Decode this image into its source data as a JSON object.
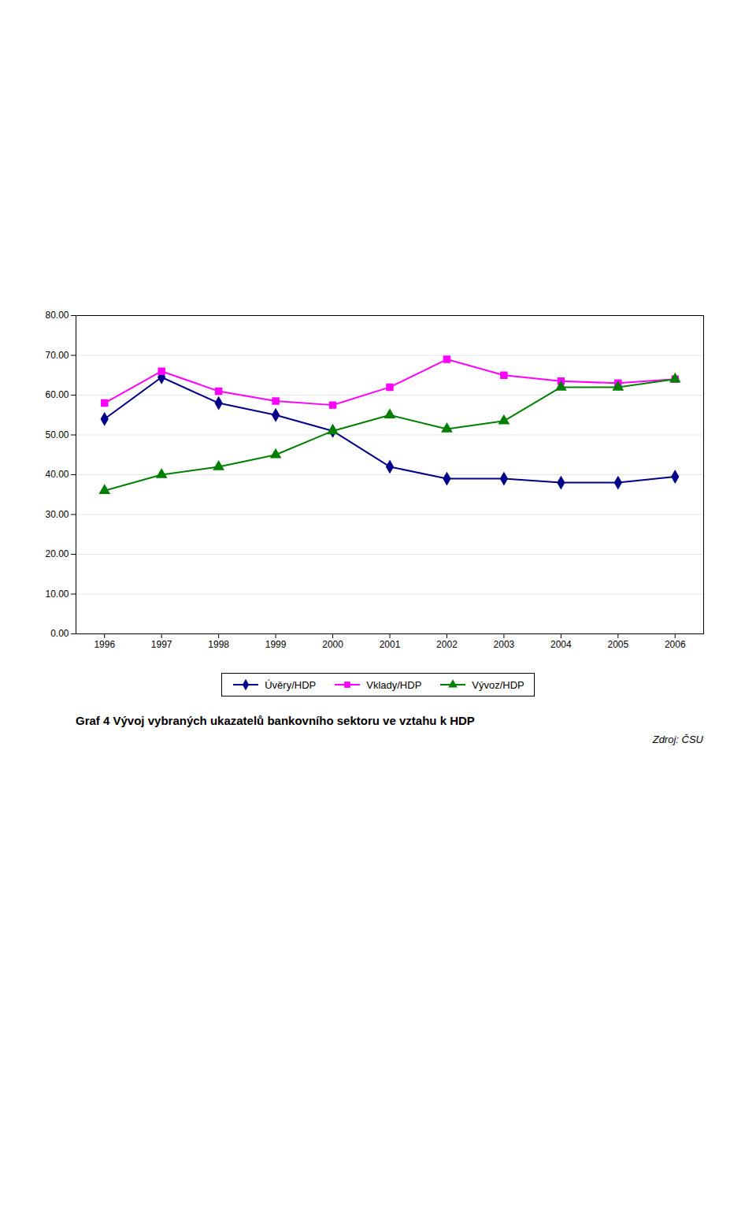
{
  "chart_data": {
    "type": "line",
    "title": "Graf 4  Vývoj vybraných ukazatelů bankovního sektoru ve vztahu k HDP",
    "caption": "Zdroj: ČSU",
    "x": [
      1996,
      1997,
      1998,
      1999,
      2000,
      2001,
      2002,
      2003,
      2004,
      2005,
      2006
    ],
    "series": [
      {
        "name": "Úvěry/HDP",
        "color": "#00008B",
        "marker": "diamond",
        "values": [
          54.0,
          64.5,
          58.0,
          55.0,
          51.0,
          42.0,
          39.0,
          39.0,
          38.0,
          38.0,
          39.5
        ]
      },
      {
        "name": "Vklady/HDP",
        "color": "#FF00FF",
        "marker": "square",
        "values": [
          58.0,
          66.0,
          61.0,
          58.5,
          57.5,
          62.0,
          69.0,
          65.0,
          63.5,
          63.0,
          64.0
        ]
      },
      {
        "name": "Vývoz/HDP",
        "color": "#008000",
        "marker": "triangle",
        "values": [
          36.0,
          40.0,
          42.0,
          45.0,
          51.0,
          55.0,
          51.5,
          53.5,
          62.0,
          62.0,
          64.0
        ]
      }
    ],
    "xlim": [
      1995.5,
      2006.5
    ],
    "xticks": [
      1996,
      1997,
      1998,
      1999,
      2000,
      2001,
      2002,
      2003,
      2004,
      2005,
      2006
    ],
    "ylim": [
      0,
      80
    ],
    "yticks": [
      {
        "value": 0,
        "label": "0.00"
      },
      {
        "value": 10,
        "label": "10.00"
      },
      {
        "value": 20,
        "label": "20.00"
      },
      {
        "value": 30,
        "label": "30.00"
      },
      {
        "value": 40,
        "label": "40.00"
      },
      {
        "value": 50,
        "label": "50.00"
      },
      {
        "value": 60,
        "label": "60.00"
      },
      {
        "value": 70,
        "label": "70.00"
      },
      {
        "value": 80,
        "label": "80.00"
      }
    ],
    "grid": true,
    "legend": "bottom"
  }
}
